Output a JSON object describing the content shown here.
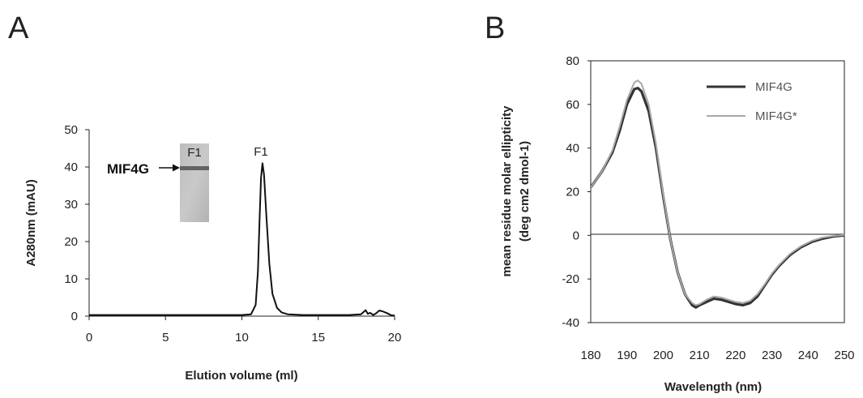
{
  "figure": {
    "panel_a_letter": "A",
    "panel_b_letter": "B"
  },
  "chart_data": [
    {
      "type": "line",
      "panel": "A",
      "title": "",
      "xlabel": "Elution volume (ml)",
      "ylabel": "A280nm (mAU)",
      "xlim": [
        0,
        20
      ],
      "ylim": [
        0,
        50
      ],
      "xticks": [
        0,
        5,
        10,
        15,
        20
      ],
      "yticks": [
        0,
        10,
        20,
        30,
        40,
        50
      ],
      "grid": false,
      "series": [
        {
          "color": "#111111",
          "x": [
            0,
            2,
            4,
            6,
            8,
            10,
            10.6,
            10.9,
            11.05,
            11.15,
            11.25,
            11.35,
            11.45,
            11.6,
            11.8,
            12.0,
            12.3,
            12.6,
            13,
            14,
            15,
            16,
            17,
            17.8,
            18.1,
            18.25,
            18.4,
            18.6,
            18.8,
            19.0,
            19.2,
            19.5,
            19.8,
            20
          ],
          "y": [
            0.3,
            0.3,
            0.3,
            0.3,
            0.3,
            0.3,
            0.5,
            3,
            12,
            25,
            37,
            41,
            38,
            27,
            14,
            6,
            2.2,
            1.0,
            0.5,
            0.3,
            0.3,
            0.3,
            0.3,
            0.5,
            1.6,
            0.6,
            0.9,
            0.3,
            0.8,
            1.5,
            1.3,
            0.8,
            0.2,
            0.2
          ]
        }
      ],
      "annotations": {
        "peak_label": "F1",
        "gel_lane_label": "F1",
        "band_label": "MIF4G"
      }
    },
    {
      "type": "line",
      "panel": "B",
      "title": "",
      "xlabel": "Wavelength (nm)",
      "ylabel_line1": "mean residue molar ellipticity",
      "ylabel_line2": "(deg cm2 dmol-1)",
      "xlim": [
        180,
        250
      ],
      "ylim": [
        -40,
        80
      ],
      "xticks": [
        180,
        190,
        200,
        210,
        220,
        230,
        240,
        250
      ],
      "yticks": [
        -40,
        -20,
        0,
        20,
        40,
        60,
        80
      ],
      "grid": false,
      "legend_position": "top-right",
      "series": [
        {
          "name": "MIF4G",
          "color": "#333333",
          "x": [
            180,
            183,
            186,
            188,
            190,
            192,
            193,
            194,
            196,
            198,
            200,
            202,
            204,
            206,
            208,
            209,
            210,
            212,
            214,
            216,
            218,
            220,
            222,
            224,
            226,
            228,
            230,
            232,
            235,
            238,
            241,
            244,
            247,
            250
          ],
          "y": [
            22,
            29,
            38,
            48,
            60,
            67,
            67.5,
            66,
            57,
            40,
            18,
            -2,
            -17,
            -27,
            -32,
            -33,
            -32,
            -30.5,
            -29,
            -29.5,
            -30.5,
            -31.5,
            -32,
            -31,
            -28,
            -23,
            -18,
            -14,
            -9,
            -5.5,
            -3,
            -1.5,
            -0.5,
            0
          ]
        },
        {
          "name": "MIF4G*",
          "color": "#a8a8a8",
          "x": [
            180,
            183,
            186,
            188,
            190,
            192,
            193,
            194,
            196,
            198,
            200,
            202,
            204,
            206,
            208,
            209,
            210,
            212,
            214,
            216,
            218,
            220,
            222,
            224,
            226,
            228,
            230,
            232,
            235,
            238,
            241,
            244,
            247,
            250
          ],
          "y": [
            22,
            29,
            39,
            50,
            62,
            70,
            71,
            69.5,
            60,
            42,
            19,
            -2,
            -17,
            -27,
            -31,
            -32,
            -31.5,
            -29.5,
            -28,
            -28.5,
            -29.5,
            -30.5,
            -31,
            -30,
            -27,
            -22.5,
            -17.5,
            -13.5,
            -8.5,
            -5,
            -2.5,
            -1,
            -0.3,
            0.2
          ]
        }
      ]
    }
  ]
}
